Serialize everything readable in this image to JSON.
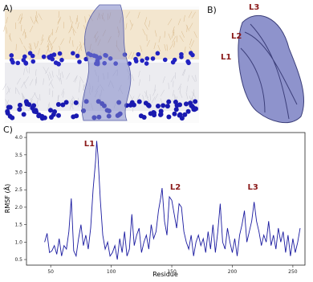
{
  "panels": {
    "a": "A)",
    "b": "B)",
    "c": "C)"
  },
  "structure_labels": [
    "L3",
    "L2",
    "L1"
  ],
  "chart_data": {
    "type": "line",
    "xlabel": "Residue",
    "ylabel": "RMSF (Å)",
    "xlim": [
      30,
      260
    ],
    "ylim": [
      0.34,
      4.14
    ],
    "xticks": [
      50,
      100,
      150,
      200,
      250
    ],
    "yticks": [
      0.5,
      {
        "value": 1,
        "label": "1.0"
      },
      1.5,
      {
        "value": 2,
        "label": "2.0"
      },
      2.5,
      {
        "value": 3,
        "label": "3.0"
      },
      3.5,
      {
        "value": 4,
        "label": "4.0"
      }
    ],
    "annotations": [
      {
        "text": "L1",
        "x": 82,
        "y": 3.75
      },
      {
        "text": "L2",
        "x": 153,
        "y": 2.5
      },
      {
        "text": "L3",
        "x": 217,
        "y": 2.5
      }
    ],
    "series": [
      {
        "color": "#1a1aa0",
        "x": [
          45,
          47,
          49,
          51,
          53,
          55,
          57,
          59,
          61,
          63,
          65,
          67,
          69,
          71,
          73,
          75,
          77,
          79,
          81,
          83,
          85,
          87,
          88,
          89,
          91,
          93,
          95,
          97,
          99,
          101,
          103,
          105,
          107,
          109,
          111,
          113,
          115,
          117,
          119,
          121,
          123,
          125,
          127,
          129,
          131,
          133,
          135,
          137,
          139,
          141,
          142,
          144,
          146,
          148,
          150,
          152,
          154,
          156,
          158,
          160,
          162,
          164,
          166,
          168,
          170,
          172,
          174,
          176,
          178,
          180,
          182,
          184,
          186,
          188,
          190,
          192,
          194,
          196,
          198,
          200,
          202,
          204,
          206,
          208,
          210,
          212,
          214,
          216,
          218,
          220,
          222,
          224,
          226,
          228,
          230,
          232,
          234,
          236,
          238,
          240,
          242,
          244,
          246,
          248,
          250,
          252,
          254,
          256
        ],
        "values": [
          1.0,
          1.25,
          0.7,
          0.75,
          0.9,
          0.65,
          1.1,
          0.6,
          0.9,
          0.8,
          1.3,
          2.25,
          0.75,
          0.6,
          1.1,
          1.5,
          0.9,
          1.2,
          0.8,
          1.4,
          2.5,
          3.3,
          3.9,
          3.5,
          2.2,
          1.2,
          0.8,
          1.0,
          0.6,
          0.7,
          0.9,
          0.5,
          1.1,
          0.7,
          1.3,
          0.6,
          0.8,
          1.8,
          0.9,
          1.2,
          1.4,
          0.7,
          1.0,
          1.2,
          0.8,
          1.5,
          1.1,
          1.3,
          1.9,
          2.3,
          2.55,
          1.6,
          1.2,
          2.3,
          2.2,
          1.8,
          1.4,
          2.1,
          2.0,
          1.3,
          1.0,
          0.8,
          1.2,
          0.6,
          1.0,
          1.2,
          0.9,
          1.1,
          0.7,
          1.3,
          0.8,
          1.5,
          0.7,
          1.3,
          2.1,
          1.0,
          0.8,
          1.4,
          1.0,
          0.7,
          1.1,
          0.6,
          1.2,
          1.5,
          1.9,
          1.0,
          1.3,
          1.6,
          2.15,
          1.6,
          1.3,
          0.9,
          1.2,
          1.0,
          1.6,
          0.9,
          1.2,
          0.8,
          1.4,
          1.0,
          1.3,
          0.7,
          1.2,
          0.6,
          1.1,
          0.7,
          1.0,
          1.4
        ]
      }
    ]
  }
}
